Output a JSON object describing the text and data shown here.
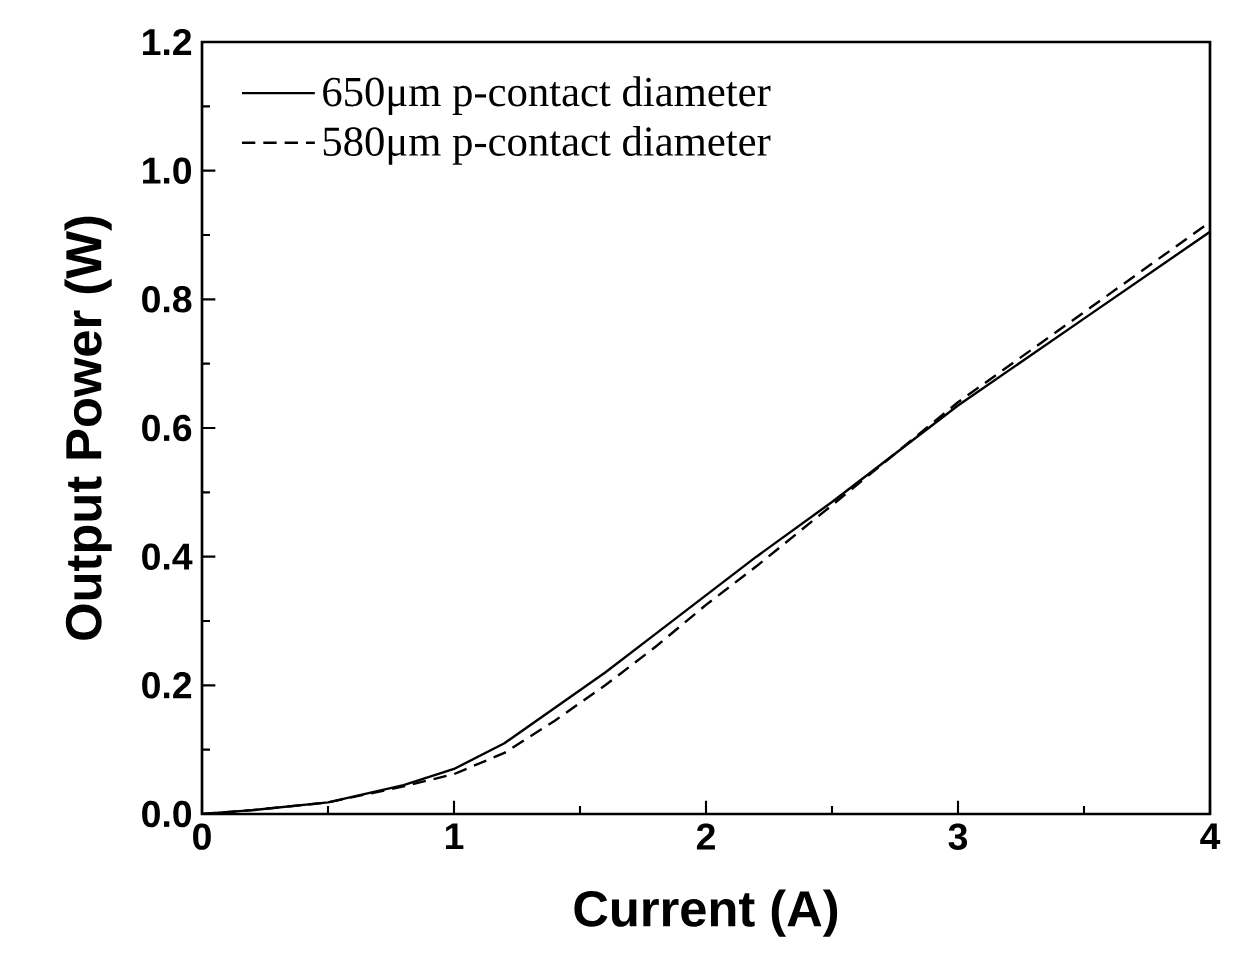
{
  "chart_data": {
    "type": "line",
    "xlabel": "Current (A)",
    "ylabel": "Output Power (W)",
    "xlim": [
      0,
      4
    ],
    "ylim": [
      0,
      1.2
    ],
    "xticks": [
      0,
      1,
      2,
      3,
      4
    ],
    "yticks": [
      {
        "value": 0,
        "label": "0.0"
      },
      {
        "value": 0.2,
        "label": "0.2"
      },
      {
        "value": 0.4,
        "label": "0.4"
      },
      {
        "value": 0.6,
        "label": "0.6"
      },
      {
        "value": 0.8,
        "label": "0.8"
      },
      {
        "value": 1.0,
        "label": "1.0"
      },
      {
        "value": 1.2,
        "label": "1.2"
      }
    ],
    "legend": "top left",
    "grid": false,
    "marker": "none",
    "series": [
      {
        "name": "650μm p-contact diameter",
        "color": "#000000",
        "line_style": "solid",
        "x": [
          0,
          0.2,
          0.5,
          0.8,
          1.0,
          1.2,
          1.4,
          1.6,
          1.8,
          2.0,
          2.2,
          2.5,
          3.0,
          3.5,
          4.0
        ],
        "values": [
          0,
          0.006,
          0.018,
          0.045,
          0.07,
          0.11,
          0.165,
          0.22,
          0.28,
          0.34,
          0.4,
          0.485,
          0.635,
          0.77,
          0.905
        ]
      },
      {
        "name": "580μm p-contact diameter",
        "color": "#000000",
        "line_style": "dashed",
        "x": [
          0,
          0.2,
          0.5,
          0.8,
          1.0,
          1.2,
          1.4,
          1.6,
          1.8,
          2.0,
          2.2,
          2.5,
          3.0,
          3.5,
          4.0
        ],
        "values": [
          0,
          0.006,
          0.018,
          0.043,
          0.062,
          0.095,
          0.145,
          0.2,
          0.26,
          0.325,
          0.385,
          0.48,
          0.64,
          0.78,
          0.92
        ]
      }
    ]
  }
}
